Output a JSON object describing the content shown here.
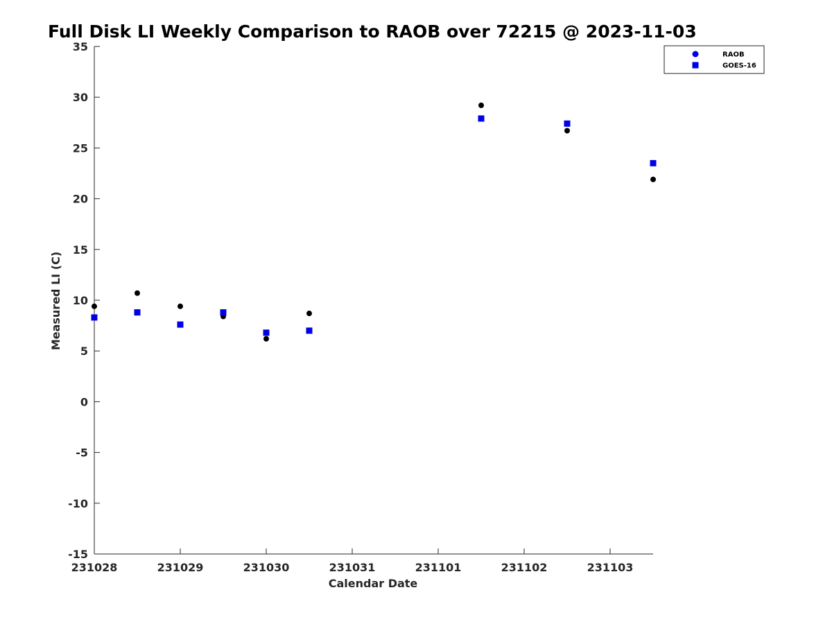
{
  "chart_data": {
    "type": "scatter",
    "title": "Full Disk LI Weekly Comparison to RAOB over 72215 @ 2023-11-03",
    "xlabel": "Calendar Date",
    "ylabel": "Measured LI (C)",
    "x_tick_labels": [
      "231028",
      "231029",
      "231030",
      "231031",
      "231101",
      "231102",
      "231103"
    ],
    "y_ticks": [
      -15,
      -10,
      -5,
      0,
      5,
      10,
      15,
      20,
      25,
      30,
      35
    ],
    "ylim": [
      -15,
      35
    ],
    "xlim_days": [
      0,
      6.5
    ],
    "grid": false,
    "legend_position": "top-right",
    "series": [
      {
        "name": "RAOB",
        "marker": "circle",
        "color": "#000000",
        "legend_color": "#0000e6",
        "x": [
          0,
          0.5,
          1,
          1.5,
          2,
          2.5,
          4.5,
          5.5,
          6.5
        ],
        "y": [
          9.4,
          10.7,
          9.4,
          8.4,
          6.2,
          8.7,
          29.2,
          26.7,
          21.9
        ]
      },
      {
        "name": "GOES-16",
        "marker": "square",
        "color": "#0000e6",
        "x": [
          0,
          0.5,
          1,
          1.5,
          2,
          2.5,
          4.5,
          5.5,
          6.5
        ],
        "y": [
          8.3,
          8.8,
          7.6,
          8.8,
          6.8,
          7.0,
          27.9,
          27.4,
          23.5
        ]
      }
    ]
  }
}
